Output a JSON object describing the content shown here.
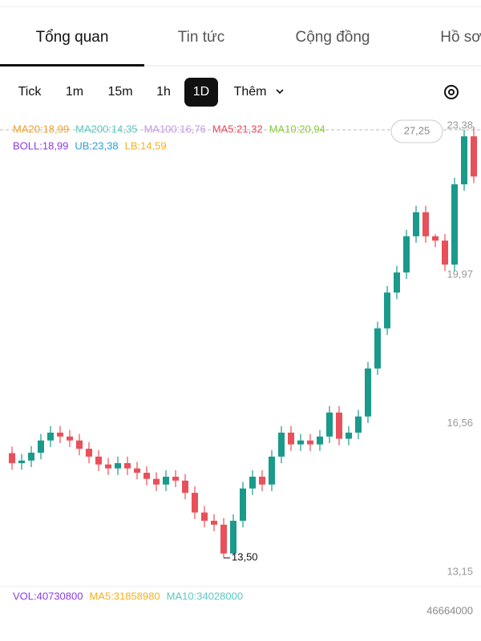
{
  "tabs": [
    "Tổng quan",
    "Tin tức",
    "Cộng đồng",
    "Hồ sơ"
  ],
  "active_tab": 0,
  "timeframes": [
    "Tick",
    "1m",
    "15m",
    "1h",
    "1D",
    "Thêm"
  ],
  "active_timeframe": 4,
  "indicators": [
    [
      {
        "label": "MA20:18,99",
        "color": "#f0a030"
      },
      {
        "label": "MA200:14,35",
        "color": "#5cc8c0"
      },
      {
        "label": "MA100:16,76",
        "color": "#c59ae8"
      },
      {
        "label": "MA5:21,32",
        "color": "#e84a5a"
      },
      {
        "label": "MA10:20,94",
        "color": "#8acb3c"
      }
    ],
    [
      {
        "label": "BOLL:18,99",
        "color": "#8a3be0"
      },
      {
        "label": "UB:23,38",
        "color": "#2a9fd8"
      },
      {
        "label": "LB:14,59",
        "color": "#f5b020"
      }
    ]
  ],
  "price_tag": "27,25",
  "volume_indicators": [
    {
      "label": "VOL:40730800",
      "color": "#8a3be0"
    },
    {
      "label": "MA5:31858980",
      "color": "#f5b020"
    },
    {
      "label": "MA10:34028000",
      "color": "#5cc8c0"
    }
  ],
  "volume_axis_label": "46664000",
  "chart_data": {
    "type": "candlestick",
    "up_color": "#1a9a8a",
    "down_color": "#e8505a",
    "ylim": [
      12.88,
      23.53
    ],
    "yticks": [
      {
        "value": 23.38,
        "label": "23,38"
      },
      {
        "value": 19.97,
        "label": "19,97"
      },
      {
        "value": 16.56,
        "label": "16,56"
      },
      {
        "value": 13.15,
        "label": "13,15"
      }
    ],
    "low_annotation": {
      "index": 22,
      "value": 13.5,
      "label": "13,50"
    },
    "open": [
      15.9,
      15.67,
      15.73,
      15.91,
      16.19,
      16.37,
      16.28,
      16.19,
      16.0,
      15.82,
      15.64,
      15.55,
      15.67,
      15.55,
      15.45,
      15.31,
      15.18,
      15.36,
      15.27,
      14.99,
      14.54,
      14.35,
      14.26,
      13.6,
      14.35,
      15.09,
      15.36,
      15.18,
      15.82,
      16.37,
      16.1,
      16.19,
      16.1,
      16.28,
      16.83,
      16.23,
      16.37,
      16.74,
      17.84,
      18.76,
      19.58,
      20.04,
      20.87,
      21.42,
      20.87,
      20.77,
      20.22,
      22.06,
      23.16
    ],
    "high": [
      16.05,
      15.88,
      16.06,
      16.34,
      16.52,
      16.52,
      16.43,
      16.34,
      16.15,
      15.97,
      15.79,
      15.82,
      15.82,
      15.7,
      15.6,
      15.46,
      15.51,
      15.51,
      15.42,
      15.14,
      14.69,
      14.5,
      14.41,
      14.5,
      15.24,
      15.51,
      15.51,
      15.97,
      16.52,
      16.52,
      16.34,
      16.34,
      16.43,
      16.98,
      16.98,
      16.52,
      16.89,
      17.99,
      18.91,
      19.73,
      20.19,
      21.02,
      21.57,
      21.57,
      20.92,
      20.92,
      22.21,
      23.31,
      23.38
    ],
    "low": [
      15.52,
      15.52,
      15.58,
      15.76,
      16.04,
      16.13,
      16.04,
      15.85,
      15.67,
      15.49,
      15.4,
      15.4,
      15.4,
      15.3,
      15.16,
      15.03,
      15.03,
      15.12,
      14.84,
      14.39,
      14.2,
      14.11,
      13.5,
      13.55,
      14.2,
      14.94,
      15.03,
      15.03,
      15.67,
      15.95,
      15.95,
      15.95,
      15.95,
      16.13,
      16.08,
      16.08,
      16.22,
      16.59,
      17.69,
      18.61,
      19.43,
      19.89,
      20.72,
      20.72,
      20.62,
      20.07,
      20.07,
      21.91,
      22.09
    ],
    "close": [
      15.67,
      15.73,
      15.91,
      16.19,
      16.37,
      16.28,
      16.19,
      16.0,
      15.82,
      15.64,
      15.55,
      15.67,
      15.55,
      15.45,
      15.31,
      15.18,
      15.36,
      15.27,
      14.99,
      14.54,
      14.35,
      14.26,
      13.6,
      14.35,
      15.09,
      15.36,
      15.18,
      15.82,
      16.37,
      16.1,
      16.19,
      16.1,
      16.28,
      16.83,
      16.23,
      16.37,
      16.74,
      17.84,
      18.76,
      19.58,
      20.04,
      20.87,
      21.42,
      20.87,
      20.77,
      20.22,
      22.06,
      23.16,
      22.24
    ]
  }
}
